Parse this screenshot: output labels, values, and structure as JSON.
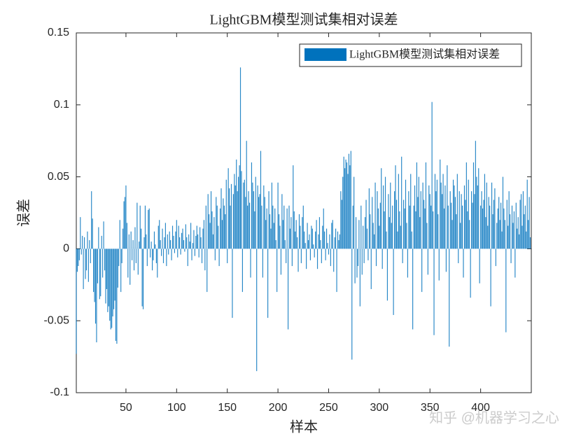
{
  "chart_data": {
    "type": "bar",
    "title": "LightGBM模型测试集相对误差",
    "xlabel": "样本",
    "ylabel": "误差",
    "watermark": "知乎 @机器学习之心",
    "legend": "northeast",
    "series": [
      {
        "name": "LightGBM模型测试集相对误差",
        "color": "#0072bd",
        "values": [
          -0.073,
          -0.016,
          -0.012,
          -0.008,
          0.022,
          -0.004,
          0.009,
          -0.028,
          0.008,
          -0.021,
          -0.015,
          0.012,
          -0.023,
          0.006,
          -0.01,
          0.04,
          0.021,
          -0.03,
          -0.037,
          -0.052,
          -0.065,
          -0.024,
          0.015,
          -0.035,
          -0.033,
          0.009,
          -0.02,
          0.019,
          -0.015,
          -0.038,
          -0.028,
          -0.044,
          -0.04,
          -0.05,
          -0.056,
          -0.055,
          -0.047,
          -0.042,
          -0.036,
          -0.064,
          -0.066,
          -0.027,
          -0.012,
          0.02,
          -0.03,
          -0.01,
          0.014,
          0.033,
          0.036,
          0.044,
          0.018,
          -0.02,
          0.01,
          -0.025,
          0.012,
          -0.008,
          0.006,
          -0.015,
          0.015,
          -0.01,
          0.032,
          -0.018,
          0.005,
          0.03,
          0.014,
          -0.04,
          -0.042,
          0.008,
          0.03,
          0.01,
          -0.012,
          0.027,
          0.028,
          -0.006,
          0.005,
          -0.015,
          -0.008,
          0.012,
          0.003,
          -0.01,
          -0.02,
          0.016,
          0.02,
          0.006,
          -0.005,
          0.014,
          -0.01,
          0.008,
          0.018,
          -0.012,
          0.01,
          -0.004,
          0.012,
          0.006,
          -0.008,
          0.016,
          0.009,
          -0.003,
          0.012,
          0.02,
          -0.006,
          0.016,
          0.008,
          -0.004,
          0.011,
          0.014,
          0.006,
          -0.002,
          0.017,
          0.008,
          -0.012,
          0.01,
          0.005,
          0.018,
          -0.008,
          0.004,
          0.013,
          -0.005,
          0.009,
          0.016,
          0.01,
          -0.006,
          0.015,
          0.008,
          -0.01,
          0.014,
          0.02,
          -0.015,
          0.03,
          -0.03,
          0.038,
          0.024,
          0.018,
          0.04,
          0.026,
          0.01,
          0.022,
          -0.008,
          0.036,
          0.03,
          0.016,
          -0.012,
          0.028,
          0.042,
          0.02,
          0.035,
          0.03,
          0.024,
          0.048,
          -0.01,
          0.056,
          0.042,
          0.03,
          0.045,
          -0.048,
          0.038,
          0.052,
          0.044,
          0.062,
          0.04,
          0.05,
          0.058,
          0.126,
          0.054,
          -0.03,
          0.046,
          0.048,
          0.036,
          0.075,
          0.03,
          0.04,
          0.032,
          -0.02,
          0.06,
          0.046,
          0.04,
          0.026,
          0.05,
          -0.085,
          0.044,
          0.036,
          0.038,
          0.068,
          0.03,
          -0.02,
          0.044,
          0.036,
          0.02,
          0.028,
          -0.048,
          0.04,
          0.024,
          0.014,
          0.046,
          0.03,
          0.018,
          0.028,
          0.006,
          -0.03,
          0.046,
          0.024,
          0.016,
          -0.018,
          0.038,
          0.02,
          0.03,
          0.006,
          -0.01,
          0.028,
          -0.056,
          0.03,
          0.014,
          0.022,
          -0.012,
          0.058,
          0.026,
          0.012,
          0.02,
          0.008,
          -0.016,
          0.024,
          0.016,
          -0.01,
          0.022,
          0.03,
          0.012,
          0.004,
          -0.014,
          0.018,
          0.006,
          0.01,
          -0.008,
          0.016,
          0.014,
          0.003,
          -0.006,
          0.012,
          0.02,
          -0.014,
          0.01,
          0.022,
          0.006,
          -0.01,
          0.016,
          0.028,
          0.012,
          -0.008,
          0.014,
          0.004,
          -0.004,
          0.01,
          -0.012,
          0.018,
          0.02,
          -0.016,
          0.008,
          0.014,
          -0.03,
          0.012,
          0.006,
          0.01,
          0.04,
          0.034,
          0.05,
          0.064,
          0.056,
          0.062,
          0.06,
          0.052,
          0.066,
          0.058,
          0.068,
          -0.077,
          0.03,
          0.05,
          -0.024,
          0.022,
          -0.02,
          -0.012,
          0.02,
          -0.04,
          0.03,
          -0.018,
          0.016,
          -0.01,
          0.022,
          0.034,
          0.014,
          -0.008,
          0.042,
          0.024,
          -0.028,
          0.036,
          0.018,
          0.01,
          0.046,
          -0.012,
          0.04,
          0.028,
          0.016,
          0.032,
          0.056,
          -0.014,
          0.044,
          0.026,
          0.05,
          0.012,
          -0.036,
          0.038,
          0.022,
          0.046,
          0.018,
          0.03,
          -0.046,
          0.04,
          0.058,
          0.034,
          0.012,
          0.052,
          0.026,
          0.016,
          0.064,
          -0.01,
          0.034,
          0.028,
          0.048,
          0.018,
          -0.02,
          0.04,
          0.03,
          0.052,
          0.012,
          -0.056,
          0.03,
          0.044,
          0.026,
          0.06,
          0.036,
          0.05,
          0.022,
          0.04,
          -0.03,
          0.046,
          0.034,
          0.028,
          0.06,
          0.018,
          -0.018,
          0.044,
          0.038,
          0.03,
          0.102,
          0.026,
          -0.06,
          0.052,
          0.04,
          0.048,
          0.024,
          -0.022,
          0.062,
          0.046,
          0.038,
          0.052,
          0.028,
          0.044,
          -0.016,
          0.058,
          0.03,
          -0.068,
          0.04,
          0.032,
          0.02,
          0.048,
          0.044,
          0.036,
          0.024,
          0.052,
          -0.01,
          0.04,
          0.018,
          0.038,
          0.03,
          -0.02,
          0.044,
          0.034,
          0.06,
          0.026,
          0.048,
          0.02,
          -0.034,
          0.04,
          0.032,
          0.06,
          0.038,
          0.075,
          0.05,
          0.044,
          0.056,
          -0.024,
          0.03,
          0.04,
          0.028,
          0.034,
          0.052,
          0.022,
          0.046,
          0.016,
          0.036,
          0.03,
          -0.04,
          0.046,
          0.024,
          0.034,
          0.042,
          -0.012,
          0.018,
          0.028,
          0.036,
          0.02,
          0.032,
          0.012,
          0.05,
          0.028,
          0.02,
          -0.058,
          0.034,
          0.016,
          0.04,
          0.024,
          -0.01,
          0.03,
          0.018,
          0.026,
          -0.02,
          0.032,
          0.014,
          0.022,
          0.01,
          0.034,
          0.038,
          0.016,
          0.04,
          0.024,
          0.03,
          0.012,
          0.048,
          0.02,
          0.036,
          0.008
        ]
      }
    ],
    "x": [
      1,
      2,
      3,
      4,
      5,
      6,
      7,
      8,
      9,
      10,
      11,
      12,
      13,
      14,
      15,
      16,
      17,
      18,
      19,
      20,
      21,
      22,
      23,
      24,
      25,
      26,
      27,
      28,
      29,
      30,
      31,
      32,
      33,
      34,
      35,
      36,
      37,
      38,
      39,
      40,
      41,
      42,
      43,
      44,
      45,
      46,
      47,
      48,
      49,
      50,
      51,
      52,
      53,
      54,
      55,
      56,
      57,
      58,
      59,
      60,
      61,
      62,
      63,
      64,
      65,
      66,
      67,
      68,
      69,
      70,
      71,
      72,
      73,
      74,
      75,
      76,
      77,
      78,
      79,
      80,
      81,
      82,
      83,
      84,
      85,
      86,
      87,
      88,
      89,
      90,
      91,
      92,
      93,
      94,
      95,
      96,
      97,
      98,
      99,
      100,
      101,
      102,
      103,
      104,
      105,
      106,
      107,
      108,
      109,
      110,
      111,
      112,
      113,
      114,
      115,
      116,
      117,
      118,
      119,
      120,
      121,
      122,
      123,
      124,
      125,
      126,
      127,
      128,
      129,
      130,
      131,
      132,
      133,
      134,
      135,
      136,
      137,
      138,
      139,
      140,
      141,
      142,
      143,
      144,
      145,
      146,
      147,
      148,
      149,
      150,
      151,
      152,
      153,
      154,
      155,
      156,
      157,
      158,
      159,
      160,
      161,
      162,
      163,
      164,
      165,
      166,
      167,
      168,
      169,
      170,
      171,
      172,
      173,
      174,
      175,
      176,
      177,
      178,
      179,
      180,
      181,
      182,
      183,
      184,
      185,
      186,
      187,
      188,
      189,
      190,
      191,
      192,
      193,
      194,
      195,
      196,
      197,
      198,
      199,
      200,
      201,
      202,
      203,
      204,
      205,
      206,
      207,
      208,
      209,
      210,
      211,
      212,
      213,
      214,
      215,
      216,
      217,
      218,
      219,
      220,
      221,
      222,
      223,
      224,
      225,
      226,
      227,
      228,
      229,
      230,
      231,
      232,
      233,
      234,
      235,
      236,
      237,
      238,
      239,
      240,
      241,
      242,
      243,
      244,
      245,
      246,
      247,
      248,
      249,
      250,
      251,
      252,
      253,
      254,
      255,
      256,
      257,
      258,
      259,
      260,
      261,
      262,
      263,
      264,
      265,
      266,
      267,
      268,
      269,
      270,
      271,
      272,
      273,
      274,
      275,
      276,
      277,
      278,
      279,
      280,
      281,
      282,
      283,
      284,
      285,
      286,
      287,
      288,
      289,
      290,
      291,
      292,
      293,
      294,
      295,
      296,
      297,
      298,
      299,
      300,
      301,
      302,
      303,
      304,
      305,
      306,
      307,
      308,
      309,
      310,
      311,
      312,
      313,
      314,
      315,
      316,
      317,
      318,
      319,
      320,
      321,
      322,
      323,
      324,
      325,
      326,
      327,
      328,
      329,
      330,
      331,
      332,
      333,
      334,
      335,
      336,
      337,
      338,
      339,
      340,
      341,
      342,
      343,
      344,
      345,
      346,
      347,
      348,
      349,
      350,
      351,
      352,
      353,
      354,
      355,
      356,
      357,
      358,
      359,
      360,
      361,
      362,
      363,
      364,
      365,
      366,
      367,
      368,
      369,
      370,
      371,
      372,
      373,
      374,
      375,
      376,
      377,
      378,
      379,
      380,
      381,
      382,
      383,
      384,
      385,
      386,
      387,
      388,
      389,
      390,
      391,
      392,
      393,
      394,
      395,
      396,
      397,
      398,
      399,
      400,
      401,
      402,
      403,
      404,
      405,
      406,
      407,
      408,
      409,
      410,
      411,
      412,
      413,
      414,
      415,
      416,
      417,
      418,
      419,
      420,
      421,
      422,
      423,
      424,
      425,
      426,
      427,
      428,
      429,
      430,
      431,
      432,
      433,
      434,
      435,
      436,
      437,
      438,
      439,
      440,
      441,
      442,
      443,
      444,
      445,
      446,
      447,
      448,
      449
    ],
    "xlim": [
      1,
      450
    ],
    "xticks": [
      50,
      100,
      150,
      200,
      250,
      300,
      350,
      400
    ],
    "ylim": [
      -0.1,
      0.15
    ],
    "yticks": [
      {
        "value": -0.1,
        "label": "-0.1"
      },
      {
        "value": -0.05,
        "label": "-0.05"
      },
      0,
      0.05,
      0.1,
      0.15
    ],
    "grid": false
  }
}
